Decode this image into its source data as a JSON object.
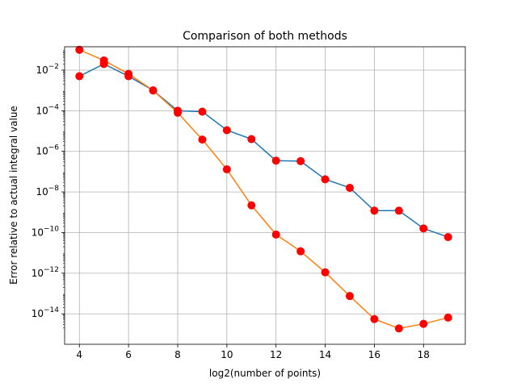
{
  "chart_data": {
    "type": "line",
    "title": "Comparison of both methods",
    "xlabel": "log2(number of points)",
    "ylabel": "Error relative to actual integral value",
    "x": [
      4,
      5,
      6,
      7,
      8,
      9,
      10,
      11,
      12,
      13,
      14,
      15,
      16,
      17,
      18,
      19
    ],
    "xlim": [
      3.4,
      19.7
    ],
    "x_ticks": [
      4,
      6,
      8,
      10,
      12,
      14,
      16,
      18
    ],
    "y_scale": "log",
    "ylim_exp": [
      -15.5,
      -0.85
    ],
    "y_tick_exps": [
      -2,
      -4,
      -6,
      -8,
      -10,
      -12,
      -14
    ],
    "grid": true,
    "marker": {
      "shape": "circle",
      "color": "#ff0000"
    },
    "series": [
      {
        "color": "#1f77b4",
        "values": [
          0.005,
          0.02,
          0.005,
          0.001,
          0.0001,
          9e-05,
          1.1e-05,
          4e-06,
          3.5e-07,
          3.3e-07,
          4.2e-08,
          1.6e-08,
          1.2e-09,
          1.2e-09,
          1.6e-10,
          6e-11
        ]
      },
      {
        "color": "#ff7f0e",
        "values": [
          0.1,
          0.03,
          0.0065,
          0.001,
          8e-05,
          3.8e-06,
          1.3e-07,
          2.2e-09,
          8e-11,
          1.2e-11,
          1.1e-12,
          7.5e-14,
          5.5e-15,
          1.9e-15,
          3.2e-15,
          6.5e-15
        ]
      }
    ]
  }
}
